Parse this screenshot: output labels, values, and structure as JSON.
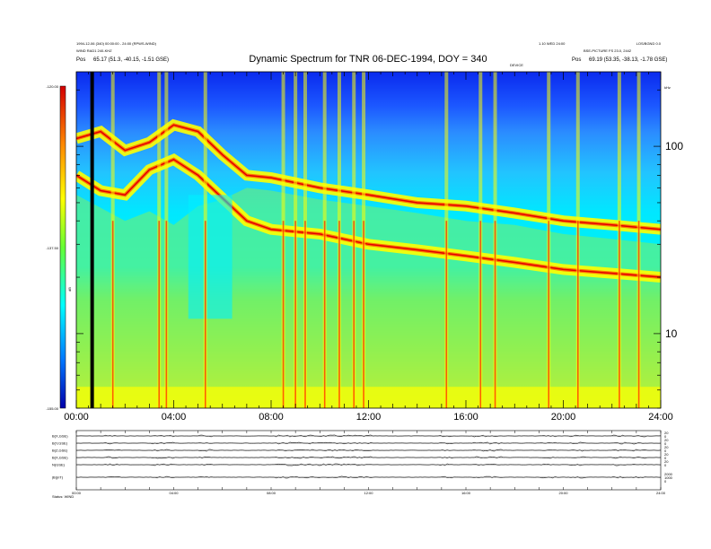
{
  "header": {
    "left_line1": "1994-12-06 (340) 00:00:00 - 24:00 (RPWS-WIND)",
    "left_line2": "WIND RAD1 240-KHZ",
    "left_line3_label": "Pos",
    "left_line3_value": "65.17 (51.3, -40.15, -1.51 GSE)",
    "right_line1": "1.10 WED 24:00",
    "right_line2_label": "Pos",
    "right_line2_value": "69.19 (53.35, -38.13, -1.78 GSE)",
    "right_small": "LOS/BGND 0.0",
    "right_small2": "BSE-PICTURE FS 23.0, 2442",
    "center_small": "DEVICE"
  },
  "chart_data": [
    {
      "type": "heatmap",
      "title": "Dynamic Spectrum for TNR 06-DEC-1994, DOY = 340",
      "xlabel": "",
      "ylabel": "",
      "x_ticks": [
        "00:00",
        "04:00",
        "08:00",
        "12:00",
        "16:00",
        "20:00",
        "24:00"
      ],
      "xlim": [
        0,
        24
      ],
      "y_scale": "log",
      "ylim": [
        4,
        250
      ],
      "y_ticks": [
        10,
        100
      ],
      "y_unit": "kHz",
      "colorbar": {
        "label": "dB",
        "ticks": [
          "-120.00",
          "-137.50",
          "-155.00"
        ],
        "range": [
          -155,
          -120
        ]
      },
      "features": {
        "lower_band_upper_edge_khz": [
          [
            0,
            55
          ],
          [
            2,
            40
          ],
          [
            3,
            45
          ],
          [
            4,
            38
          ],
          [
            5,
            48
          ],
          [
            6,
            52
          ],
          [
            7,
            60
          ],
          [
            8,
            58
          ],
          [
            10,
            52
          ],
          [
            12,
            48
          ],
          [
            14,
            44
          ],
          [
            16,
            40
          ],
          [
            18,
            38
          ],
          [
            20,
            34
          ],
          [
            22,
            32
          ],
          [
            24,
            30
          ]
        ],
        "upper_trace_khz": [
          [
            0,
            110
          ],
          [
            1,
            120
          ],
          [
            2,
            95
          ],
          [
            3,
            105
          ],
          [
            4,
            130
          ],
          [
            5,
            120
          ],
          [
            6,
            90
          ],
          [
            7,
            70
          ],
          [
            8,
            68
          ],
          [
            10,
            60
          ],
          [
            12,
            55
          ],
          [
            14,
            50
          ],
          [
            16,
            48
          ],
          [
            18,
            44
          ],
          [
            20,
            40
          ],
          [
            22,
            38
          ],
          [
            24,
            36
          ]
        ],
        "second_trace_khz": [
          [
            0,
            70
          ],
          [
            1,
            58
          ],
          [
            2,
            55
          ],
          [
            3,
            75
          ],
          [
            4,
            85
          ],
          [
            5,
            70
          ],
          [
            7,
            40
          ],
          [
            8,
            36
          ],
          [
            10,
            34
          ],
          [
            12,
            30
          ],
          [
            14,
            28
          ],
          [
            16,
            26
          ],
          [
            18,
            24
          ],
          [
            20,
            22
          ],
          [
            22,
            21
          ],
          [
            24,
            20
          ]
        ],
        "bursts_hours": [
          1.5,
          3.4,
          3.7,
          5.3,
          8.5,
          9.0,
          9.4,
          10.2,
          10.8,
          11.4,
          11.8,
          15.2,
          16.6,
          17.2,
          19.4,
          20.6,
          22.3,
          23.1
        ],
        "gap_hour": 0.65
      }
    },
    {
      "type": "line",
      "title": "",
      "x_ticks": [
        "00:00",
        "04:00",
        "08:00",
        "12:00",
        "16:00",
        "20:00",
        "24:00"
      ],
      "xlim": [
        0,
        24
      ],
      "series": [
        {
          "name": "B(X,GSE)",
          "scale_ticks": [
            "20",
            "0"
          ]
        },
        {
          "name": "B(Y,GSE)",
          "scale_ticks": [
            "20",
            "0"
          ]
        },
        {
          "name": "B(Z,GSE)",
          "scale_ticks": [
            "20",
            "0"
          ]
        },
        {
          "name": "B(X,GSE)",
          "scale_ticks": [
            "20",
            "0"
          ]
        },
        {
          "name": "N(GSE)",
          "scale_ticks": [
            "20",
            "0"
          ]
        },
        {
          "name": "|B|(nT)",
          "scale_ticks": [
            "2000",
            "1000",
            "0"
          ]
        }
      ],
      "footer": "Status: WIND"
    }
  ]
}
